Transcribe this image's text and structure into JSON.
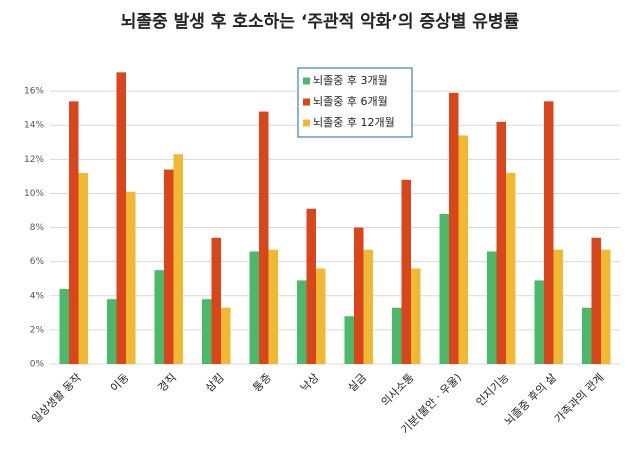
{
  "chart_data": {
    "type": "bar",
    "title": "뇌졸중 발생 후 호소하는 ‘주관적 악화’의 증상별 유병률",
    "categories": [
      "일상생활 동작",
      "이동",
      "경직",
      "삼킴",
      "통증",
      "낙상",
      "실금",
      "의사소통",
      "기분(불안 · 우울)",
      "인지기능",
      "뇌졸중 후의 삶",
      "가족과의 관계"
    ],
    "series": [
      {
        "name": "뇌졸중 후  3개월",
        "color": "#4cb86a",
        "values": [
          4.4,
          3.8,
          5.5,
          3.8,
          6.6,
          4.9,
          2.8,
          3.3,
          8.8,
          6.6,
          4.9,
          3.3
        ]
      },
      {
        "name": "뇌졸중 후  6개월",
        "color": "#d9461b",
        "values": [
          15.4,
          17.1,
          11.4,
          7.4,
          14.8,
          9.1,
          8.0,
          10.8,
          15.9,
          14.2,
          15.4,
          7.4
        ]
      },
      {
        "name": "뇌졸중 후  12개월",
        "color": "#efb934",
        "values": [
          11.2,
          10.1,
          12.3,
          3.3,
          6.7,
          5.6,
          6.7,
          5.6,
          13.4,
          11.2,
          6.7,
          6.7
        ]
      }
    ],
    "ylim": [
      0,
      18
    ],
    "yticks": [
      {
        "value": 0,
        "label": "0%"
      },
      {
        "value": 2,
        "label": "2%"
      },
      {
        "value": 4,
        "label": "4%"
      },
      {
        "value": 6,
        "label": "6%"
      },
      {
        "value": 8,
        "label": "8%"
      },
      {
        "value": 10,
        "label": "10%"
      },
      {
        "value": 12,
        "label": "12%"
      },
      {
        "value": 14,
        "label": "14%"
      },
      {
        "value": 16,
        "label": "16%"
      }
    ],
    "grid": true,
    "legend": "top"
  }
}
